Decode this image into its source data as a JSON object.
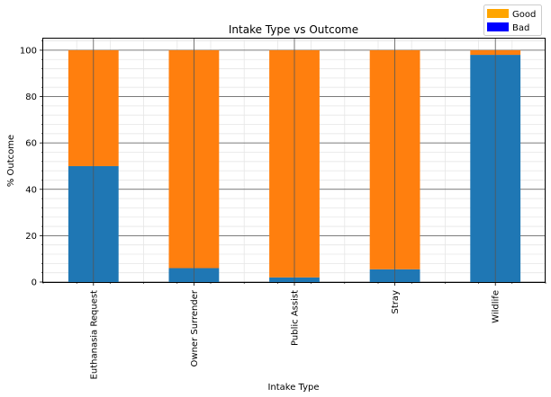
{
  "chart_data": {
    "type": "bar",
    "stacked": true,
    "title": "Intake Type vs Outcome",
    "xlabel": "Intake Type",
    "ylabel": "% Outcome",
    "ylim": [
      0,
      105
    ],
    "yticks": [
      0,
      20,
      40,
      60,
      80,
      100
    ],
    "grid": true,
    "categories": [
      "Euthanasia Request",
      "Owner Surrender",
      "Public Assist",
      "Stray",
      "Wildlife"
    ],
    "series": [
      {
        "values": [
          50,
          6,
          2,
          5.5,
          98
        ],
        "color": "#1f77b4"
      },
      {
        "values": [
          50,
          94,
          98,
          94.5,
          2
        ],
        "color": "#ff7f0e"
      }
    ],
    "legend": {
      "placement": "top-right",
      "entries": [
        {
          "label": "Good",
          "color": "#ffa500"
        },
        {
          "label": "Bad",
          "color": "#0000ff"
        }
      ]
    }
  }
}
